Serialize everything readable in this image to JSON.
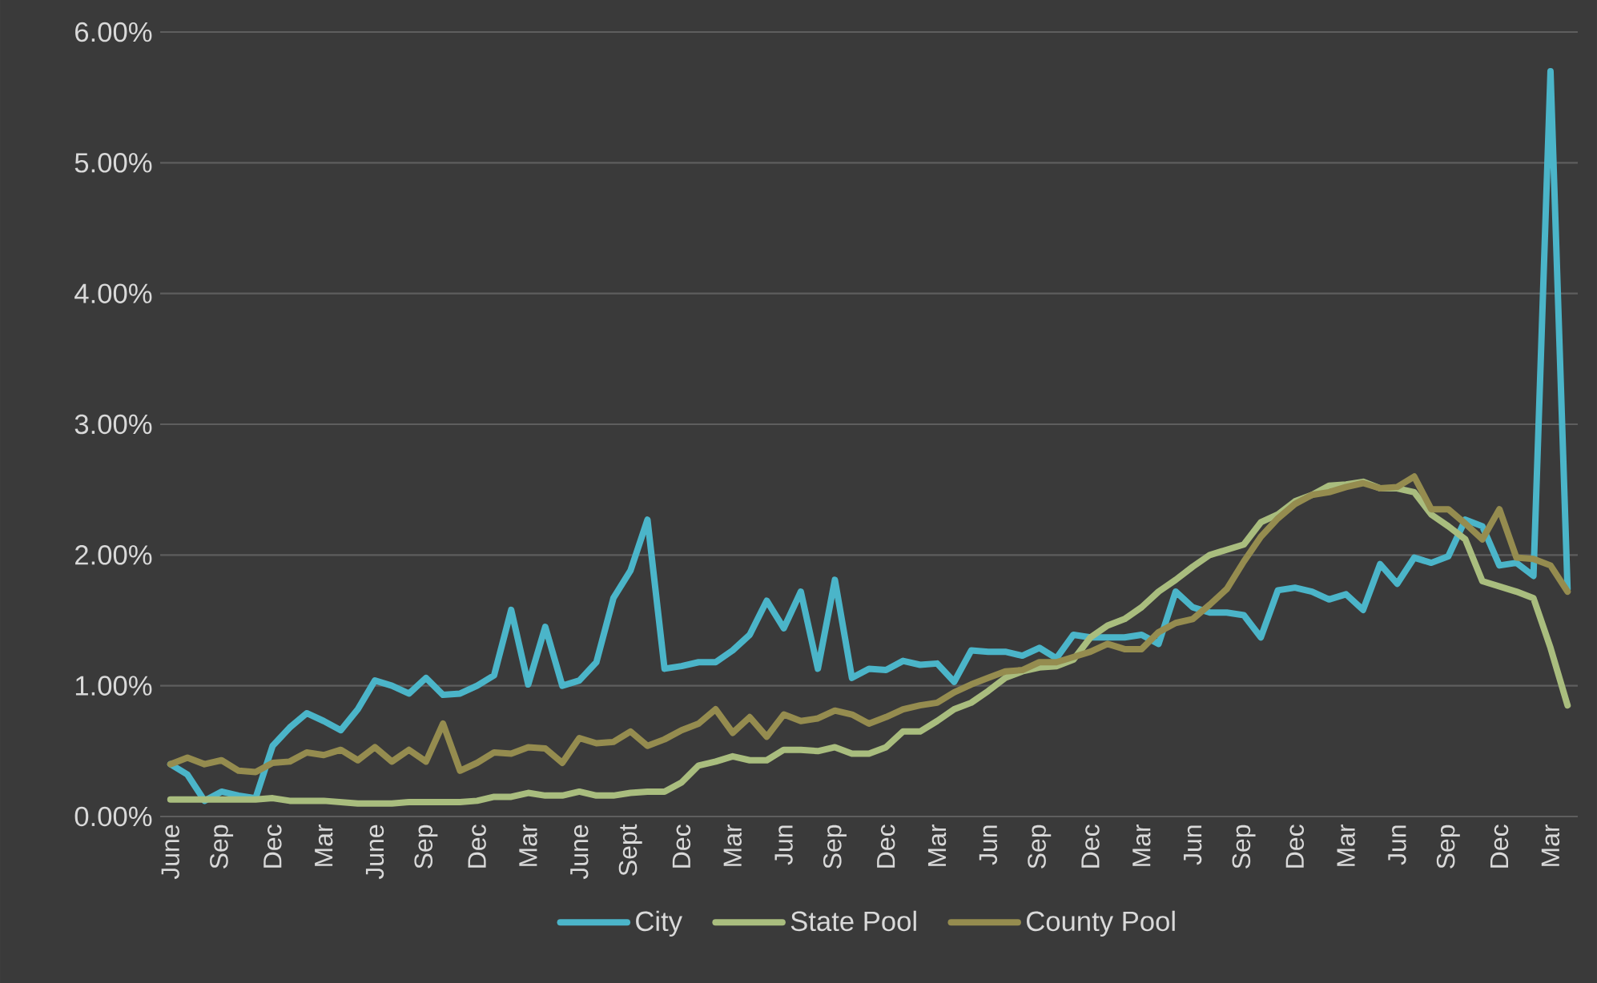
{
  "chart_data": {
    "type": "line",
    "grid": "y",
    "legend": "bottom",
    "marker": "none",
    "line_style": "solid",
    "ylim": [
      0,
      6
    ],
    "yticks": [
      {
        "value": 0,
        "label": "0.00%"
      },
      {
        "value": 1,
        "label": "1.00%"
      },
      {
        "value": 2,
        "label": "2.00%"
      },
      {
        "value": 3,
        "label": "3.00%"
      },
      {
        "value": 4,
        "label": "4.00%"
      },
      {
        "value": 5,
        "label": "5.00%"
      },
      {
        "value": 6,
        "label": "6.00%"
      }
    ],
    "categories": [
      "June",
      null,
      null,
      "Sep",
      null,
      null,
      "Dec",
      null,
      null,
      "Mar",
      null,
      null,
      "June",
      null,
      null,
      "Sep",
      null,
      null,
      "Dec",
      null,
      null,
      "Mar",
      null,
      null,
      "June",
      null,
      null,
      "Sept",
      null,
      null,
      "Dec",
      null,
      null,
      "Mar",
      null,
      null,
      "Jun",
      null,
      null,
      "Sep",
      null,
      null,
      "Dec",
      null,
      null,
      "Mar",
      null,
      null,
      "Jun",
      null,
      null,
      "Sep",
      null,
      null,
      "Dec",
      null,
      null,
      "Mar",
      null,
      null,
      "Jun",
      null,
      null,
      "Sep",
      null,
      null,
      "Dec",
      null,
      null,
      "Mar",
      null,
      null,
      "Jun",
      null,
      null,
      "Sep",
      null,
      null,
      "Dec",
      null,
      null,
      "Mar",
      null
    ],
    "series": [
      {
        "name": "City",
        "color": "#4bb5c9",
        "values": [
          0.4,
          0.32,
          0.12,
          0.19,
          0.16,
          0.14,
          0.54,
          0.68,
          0.79,
          0.73,
          0.66,
          0.82,
          1.04,
          1.0,
          0.94,
          1.06,
          0.93,
          0.94,
          1.0,
          1.08,
          1.58,
          1.01,
          1.45,
          1.0,
          1.04,
          1.18,
          1.67,
          1.88,
          2.27,
          1.13,
          1.15,
          1.18,
          1.18,
          1.27,
          1.39,
          1.65,
          1.44,
          1.72,
          1.13,
          1.81,
          1.06,
          1.13,
          1.12,
          1.19,
          1.16,
          1.17,
          1.03,
          1.27,
          1.26,
          1.26,
          1.23,
          1.29,
          1.21,
          1.39,
          1.37,
          1.37,
          1.37,
          1.39,
          1.32,
          1.72,
          1.6,
          1.56,
          1.56,
          1.54,
          1.37,
          1.73,
          1.75,
          1.72,
          1.66,
          1.7,
          1.58,
          1.93,
          1.78,
          1.98,
          1.94,
          1.99,
          2.27,
          2.22,
          1.92,
          1.94,
          1.84,
          5.7,
          1.74
        ]
      },
      {
        "name": "State Pool",
        "color": "#a9bd7e",
        "values": [
          0.13,
          0.13,
          0.13,
          0.13,
          0.13,
          0.13,
          0.14,
          0.12,
          0.12,
          0.12,
          0.11,
          0.1,
          0.1,
          0.1,
          0.11,
          0.11,
          0.11,
          0.11,
          0.12,
          0.15,
          0.15,
          0.18,
          0.16,
          0.16,
          0.19,
          0.16,
          0.16,
          0.18,
          0.19,
          0.19,
          0.26,
          0.39,
          0.42,
          0.46,
          0.43,
          0.43,
          0.51,
          0.51,
          0.5,
          0.53,
          0.48,
          0.48,
          0.53,
          0.65,
          0.65,
          0.73,
          0.82,
          0.87,
          0.96,
          1.06,
          1.11,
          1.14,
          1.15,
          1.2,
          1.37,
          1.46,
          1.51,
          1.6,
          1.72,
          1.81,
          1.91,
          2.0,
          2.04,
          2.08,
          2.25,
          2.31,
          2.41,
          2.46,
          2.53,
          2.54,
          2.56,
          2.51,
          2.51,
          2.48,
          2.31,
          2.22,
          2.12,
          1.8,
          1.76,
          1.72,
          1.67,
          1.29,
          0.85
        ]
      },
      {
        "name": "County Pool",
        "color": "#958c4f",
        "values": [
          0.4,
          0.45,
          0.4,
          0.43,
          0.35,
          0.34,
          0.41,
          0.42,
          0.49,
          0.47,
          0.51,
          0.43,
          0.53,
          0.42,
          0.51,
          0.42,
          0.71,
          0.35,
          0.41,
          0.49,
          0.48,
          0.53,
          0.52,
          0.41,
          0.6,
          0.56,
          0.57,
          0.65,
          0.54,
          0.59,
          0.66,
          0.71,
          0.82,
          0.64,
          0.76,
          0.61,
          0.78,
          0.73,
          0.75,
          0.81,
          0.78,
          0.71,
          0.76,
          0.82,
          0.85,
          0.87,
          0.95,
          1.01,
          1.06,
          1.11,
          1.12,
          1.18,
          1.18,
          1.22,
          1.26,
          1.32,
          1.28,
          1.28,
          1.41,
          1.48,
          1.51,
          1.62,
          1.74,
          1.95,
          2.14,
          2.28,
          2.39,
          2.46,
          2.48,
          2.52,
          2.55,
          2.51,
          2.52,
          2.6,
          2.35,
          2.35,
          2.24,
          2.12,
          2.35,
          1.98,
          1.97,
          1.92,
          1.72
        ]
      }
    ]
  }
}
